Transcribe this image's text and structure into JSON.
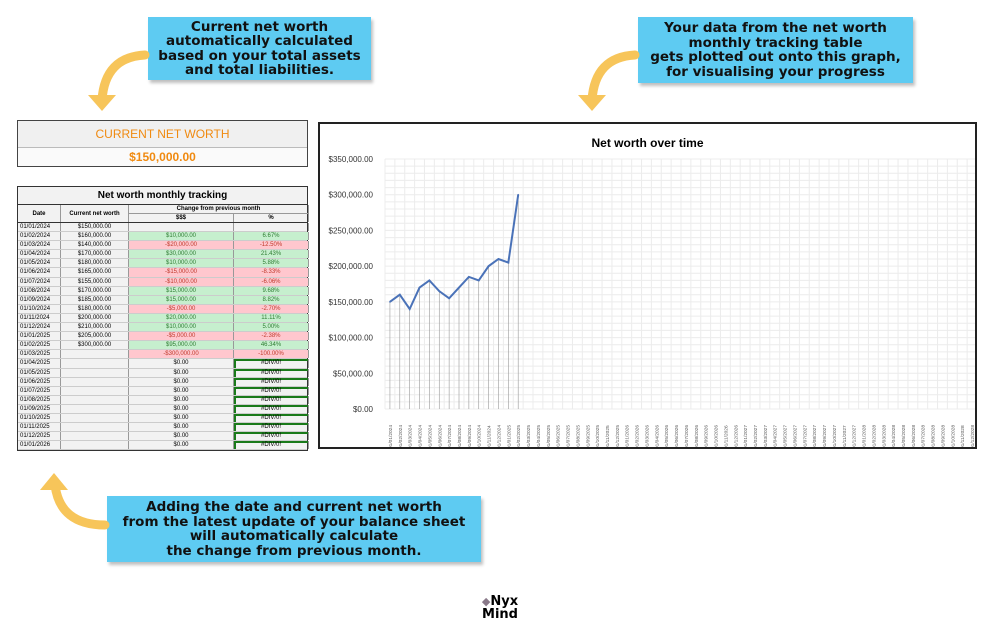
{
  "callouts": {
    "top_left": [
      "Current net worth",
      "automatically calculated",
      "based on your total assets",
      "and total liabilities."
    ],
    "top_right": [
      "Your data from the net worth",
      "monthly tracking table",
      "gets plotted out onto this graph,",
      "for visualising your progress"
    ],
    "bottom": [
      "Adding the date and current net worth",
      "from the latest update of your balance sheet",
      "will automatically calculate",
      "the change from previous month."
    ]
  },
  "current_net_worth": {
    "label": "CURRENT NET WORTH",
    "value": "$150,000.00"
  },
  "tracking": {
    "title": "Net worth monthly tracking",
    "headers": {
      "date": "Date",
      "net_worth": "Current net worth",
      "change": "Change from previous month",
      "dollars": "$$$",
      "percent": "%"
    },
    "rows": [
      [
        "01/01/2024",
        "$150,000.00",
        "",
        "",
        ""
      ],
      [
        "01/02/2024",
        "$160,000.00",
        "$10,000.00",
        "6.67%",
        "pos"
      ],
      [
        "01/03/2024",
        "$140,000.00",
        "-$20,000.00",
        "-12.50%",
        "neg"
      ],
      [
        "01/04/2024",
        "$170,000.00",
        "$30,000.00",
        "21.43%",
        "pos"
      ],
      [
        "01/05/2024",
        "$180,000.00",
        "$10,000.00",
        "5.88%",
        "pos"
      ],
      [
        "01/06/2024",
        "$165,000.00",
        "-$15,000.00",
        "-8.33%",
        "neg"
      ],
      [
        "01/07/2024",
        "$155,000.00",
        "-$10,000.00",
        "-6.06%",
        "neg"
      ],
      [
        "01/08/2024",
        "$170,000.00",
        "$15,000.00",
        "9.68%",
        "pos"
      ],
      [
        "01/09/2024",
        "$185,000.00",
        "$15,000.00",
        "8.82%",
        "pos"
      ],
      [
        "01/10/2024",
        "$180,000.00",
        "-$5,000.00",
        "-2.70%",
        "neg"
      ],
      [
        "01/11/2024",
        "$200,000.00",
        "$20,000.00",
        "11.11%",
        "pos"
      ],
      [
        "01/12/2024",
        "$210,000.00",
        "$10,000.00",
        "5.00%",
        "pos"
      ],
      [
        "01/01/2025",
        "$205,000.00",
        "-$5,000.00",
        "-2.38%",
        "neg"
      ],
      [
        "01/02/2025",
        "$300,000.00",
        "$95,000.00",
        "46.34%",
        "pos"
      ],
      [
        "01/03/2025",
        "",
        "-$300,000.00",
        "-100.00%",
        "neg"
      ],
      [
        "01/04/2025",
        "",
        "$0.00",
        "#DIV/0!",
        ""
      ],
      [
        "01/05/2025",
        "",
        "$0.00",
        "#DIV/0!",
        ""
      ],
      [
        "01/06/2025",
        "",
        "$0.00",
        "#DIV/0!",
        ""
      ],
      [
        "01/07/2025",
        "",
        "$0.00",
        "#DIV/0!",
        ""
      ],
      [
        "01/08/2025",
        "",
        "$0.00",
        "#DIV/0!",
        ""
      ],
      [
        "01/09/2025",
        "",
        "$0.00",
        "#DIV/0!",
        ""
      ],
      [
        "01/10/2025",
        "",
        "$0.00",
        "#DIV/0!",
        ""
      ],
      [
        "01/11/2025",
        "",
        "$0.00",
        "#DIV/0!",
        ""
      ],
      [
        "01/12/2025",
        "",
        "$0.00",
        "#DIV/0!",
        ""
      ],
      [
        "01/01/2026",
        "",
        "$0.00",
        "#DIV/0!",
        ""
      ]
    ]
  },
  "chart_data": {
    "type": "line",
    "title": "Net worth over time",
    "xlabel": "",
    "ylabel": "",
    "ylim": [
      0,
      350000
    ],
    "yticks": [
      "$0.00",
      "$50,000.00",
      "$100,000.00",
      "$150,000.00",
      "$200,000.00",
      "$250,000.00",
      "$300,000.00",
      "$350,000.00"
    ],
    "x_start": "2024-01",
    "x_months": 60,
    "values": [
      150000,
      160000,
      140000,
      170000,
      180000,
      165000,
      155000,
      170000,
      185000,
      180000,
      200000,
      210000,
      205000,
      300000
    ],
    "grid": true,
    "line_color": "#4a72b8"
  },
  "logo": {
    "line1": "Nyx",
    "line2": "Mind"
  }
}
